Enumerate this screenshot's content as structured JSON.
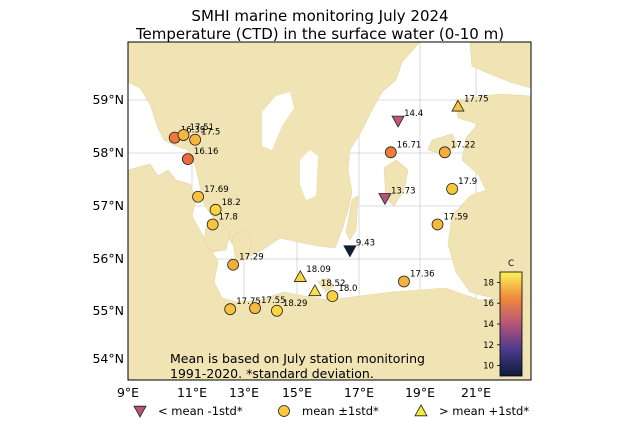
{
  "title": "SMHI marine monitoring July 2024",
  "subtitle": "Temperature (CTD) in the surface water (0-10 m)",
  "note_line1": "Mean is based on July station monitoring",
  "note_line2": "1991-2020. *standard deviation.",
  "x_ticks": [
    "9°E",
    "11°E",
    "13°E",
    "15°E",
    "17°E",
    "19°E",
    "21°E"
  ],
  "y_ticks": [
    "59°N",
    "58°N",
    "57°N",
    "56°N",
    "55°N",
    "54°N"
  ],
  "colorbar": {
    "label": "C",
    "ticks": [
      "18",
      "16",
      "14",
      "12",
      "10"
    ],
    "min": 9,
    "max": 19
  },
  "legend": [
    {
      "symbol": "triangle-down",
      "label": "< mean -1std*"
    },
    {
      "symbol": "circle",
      "label": "mean ±1std*"
    },
    {
      "symbol": "triangle-up",
      "label": "> mean +1std*"
    }
  ],
  "colors": {
    "land": "#f0e3b4",
    "sea": "#ffffff",
    "grid": "#cccccc",
    "below": "#b5547a",
    "mean": "#f7ca3c",
    "above": "#f7ea3a"
  },
  "stations": [
    {
      "value": "16.39",
      "lon": 10.6,
      "lat": 58.28,
      "category": "mean",
      "color": "#ee7a3b"
    },
    {
      "value": "17.51",
      "lon": 10.9,
      "lat": 58.33,
      "category": "mean",
      "color": "#f6b53e"
    },
    {
      "value": "17.5",
      "lon": 11.3,
      "lat": 58.24,
      "category": "mean",
      "color": "#f6b53e"
    },
    {
      "value": "16.16",
      "lon": 11.05,
      "lat": 57.87,
      "category": "mean",
      "color": "#ea6b3b"
    },
    {
      "value": "17.69",
      "lon": 11.4,
      "lat": 57.15,
      "category": "mean",
      "color": "#f8c23d"
    },
    {
      "value": "18.2",
      "lon": 12.0,
      "lat": 56.9,
      "category": "mean",
      "color": "#fad53e"
    },
    {
      "value": "17.8",
      "lon": 11.9,
      "lat": 56.62,
      "category": "mean",
      "color": "#f8c53d"
    },
    {
      "value": "17.29",
      "lon": 12.6,
      "lat": 55.85,
      "category": "mean",
      "color": "#f4ad3c"
    },
    {
      "value": "17.75",
      "lon": 12.5,
      "lat": 55.0,
      "category": "mean",
      "color": "#f8c23d"
    },
    {
      "value": "17.55",
      "lon": 13.35,
      "lat": 55.02,
      "category": "mean",
      "color": "#f6b83e"
    },
    {
      "value": "18.29",
      "lon": 14.1,
      "lat": 54.97,
      "category": "mean",
      "color": "#fbd73f"
    },
    {
      "value": "18.09",
      "lon": 14.9,
      "lat": 55.62,
      "category": "above",
      "color": "#f9d640"
    },
    {
      "value": "18.52",
      "lon": 15.4,
      "lat": 55.35,
      "category": "above",
      "color": "#fce04a"
    },
    {
      "value": "18.0",
      "lon": 16.0,
      "lat": 55.25,
      "category": "mean",
      "color": "#f9d03e"
    },
    {
      "value": "9.43",
      "lon": 16.6,
      "lat": 56.12,
      "category": "below",
      "color": "#0d1f33"
    },
    {
      "value": "17.36",
      "lon": 18.45,
      "lat": 55.53,
      "category": "mean",
      "color": "#f5b13d"
    },
    {
      "value": "13.73",
      "lon": 17.8,
      "lat": 57.12,
      "category": "below",
      "color": "#b5547a"
    },
    {
      "value": "14.4",
      "lon": 18.25,
      "lat": 58.6,
      "category": "below",
      "color": "#c1587a"
    },
    {
      "value": "16.71",
      "lon": 18.0,
      "lat": 58.0,
      "category": "mean",
      "color": "#ee7e3a"
    },
    {
      "value": "17.22",
      "lon": 19.85,
      "lat": 58.0,
      "category": "mean",
      "color": "#f4ad3c"
    },
    {
      "value": "17.75",
      "lon": 20.3,
      "lat": 58.88,
      "category": "above",
      "color": "#f8c23d"
    },
    {
      "value": "17.9",
      "lon": 20.1,
      "lat": 57.3,
      "category": "mean",
      "color": "#f8c73d"
    },
    {
      "value": "17.59",
      "lon": 19.6,
      "lat": 56.62,
      "category": "mean",
      "color": "#f6b93e"
    }
  ]
}
